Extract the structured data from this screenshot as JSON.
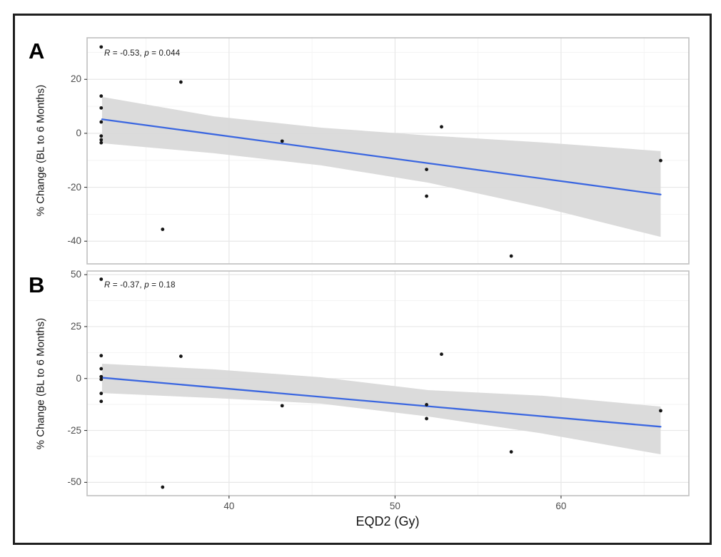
{
  "figure": {
    "xlabel": "EQD2 (Gy)",
    "x_tick_labels": [
      "40",
      "50",
      "60"
    ],
    "background_color": "#ffffff",
    "outer_border_color": "#1f1f1f",
    "panels": [
      {
        "label": "A",
        "ylabel": "% Change (BL to 6 Months)",
        "y_tick_labels": [
          "20",
          "0",
          "-20",
          "-40"
        ],
        "annotation": {
          "r_var": "R",
          "r_text": " = -0.53, ",
          "p_var": "p",
          "p_text": " = 0.044"
        }
      },
      {
        "label": "B",
        "ylabel": "% Change (BL to 6 Months)",
        "y_tick_labels": [
          "50",
          "25",
          "0",
          "-25",
          "-50"
        ],
        "annotation": {
          "r_var": "R",
          "r_text": " = -0.37, ",
          "p_var": "p",
          "p_text": " = 0.18"
        }
      }
    ]
  },
  "style": {
    "point_color": "#151515",
    "line_color": "#3a66e0",
    "band_color": "#d9d9d9",
    "grid_major_color": "#e7e7e7",
    "grid_minor_color": "#f3f3f3",
    "panel_border_color": "#bfbfbf",
    "tick_mark_color": "#333333"
  },
  "chart_data": [
    {
      "type": "scatter",
      "panel": "A",
      "xlabel": "EQD2 (Gy)",
      "ylabel": "% Change (BL to 6 Months)",
      "annotation": "R = -0.53, p = 0.044",
      "R": -0.53,
      "p": 0.044,
      "xlim": [
        31.45,
        67.7
      ],
      "ylim": [
        -48.4,
        35.4
      ],
      "x_ticks": [
        40,
        50,
        60
      ],
      "x_minor_ticks": [
        35,
        45,
        55,
        65
      ],
      "y_ticks": [
        20,
        0,
        -20,
        -40
      ],
      "y_minor_ticks": [
        30,
        10,
        -10,
        -30
      ],
      "grid": true,
      "legend": false,
      "points": [
        [
          32.3,
          32.0
        ],
        [
          32.3,
          13.8
        ],
        [
          32.3,
          9.4
        ],
        [
          32.3,
          4.2
        ],
        [
          32.3,
          -1.0
        ],
        [
          32.3,
          -2.4
        ],
        [
          32.3,
          -3.5
        ],
        [
          36.0,
          -35.6
        ],
        [
          37.1,
          19.0
        ],
        [
          43.2,
          -2.9
        ],
        [
          51.9,
          -13.4
        ],
        [
          51.9,
          -23.3
        ],
        [
          52.8,
          2.4
        ],
        [
          57.0,
          -45.5
        ],
        [
          66.0,
          -10.1
        ]
      ],
      "regression_line": {
        "x": [
          32.35,
          66.0
        ],
        "y": [
          5.2,
          -22.7
        ]
      },
      "ci_band": {
        "x": [
          32.35,
          39.1,
          45.55,
          52.0,
          58.9,
          66.0
        ],
        "upper": [
          13.5,
          6.3,
          2.1,
          -0.8,
          -3.4,
          -6.6
        ],
        "lower": [
          -3.7,
          -7.4,
          -11.9,
          -18.3,
          -27.5,
          -38.4
        ]
      }
    },
    {
      "type": "scatter",
      "panel": "B",
      "xlabel": "EQD2 (Gy)",
      "ylabel": "% Change (BL to 6 Months)",
      "annotation": "R = -0.37, p = 0.18",
      "R": -0.37,
      "p": 0.18,
      "xlim": [
        31.45,
        67.7
      ],
      "ylim": [
        -56.4,
        51.75
      ],
      "x_ticks": [
        40,
        50,
        60
      ],
      "x_minor_ticks": [
        35,
        45,
        55,
        65
      ],
      "y_ticks": [
        50,
        25,
        0,
        -25,
        -50
      ],
      "y_minor_ticks": [
        37.5,
        12.5,
        -12.5,
        -37.5
      ],
      "grid": true,
      "legend": false,
      "points": [
        [
          32.3,
          47.8
        ],
        [
          32.3,
          11.0
        ],
        [
          32.3,
          4.7
        ],
        [
          32.3,
          0.9
        ],
        [
          32.3,
          -0.4
        ],
        [
          32.3,
          -7.2
        ],
        [
          32.3,
          -11.0
        ],
        [
          36.0,
          -52.3
        ],
        [
          37.1,
          10.7
        ],
        [
          43.2,
          -13.1
        ],
        [
          51.9,
          -12.6
        ],
        [
          51.9,
          -19.3
        ],
        [
          52.8,
          11.7
        ],
        [
          57.0,
          -35.3
        ],
        [
          66.0,
          -15.5
        ]
      ],
      "regression_line": {
        "x": [
          32.35,
          66.0
        ],
        "y": [
          0.4,
          -23.2
        ]
      },
      "ci_band": {
        "x": [
          32.35,
          39.1,
          45.55,
          52.0,
          58.9,
          66.0
        ],
        "upper": [
          7.1,
          4.4,
          0.6,
          -5.6,
          -8.3,
          -13.5
        ],
        "lower": [
          -7.0,
          -9.4,
          -12.1,
          -18.3,
          -26.5,
          -36.5
        ]
      }
    }
  ]
}
